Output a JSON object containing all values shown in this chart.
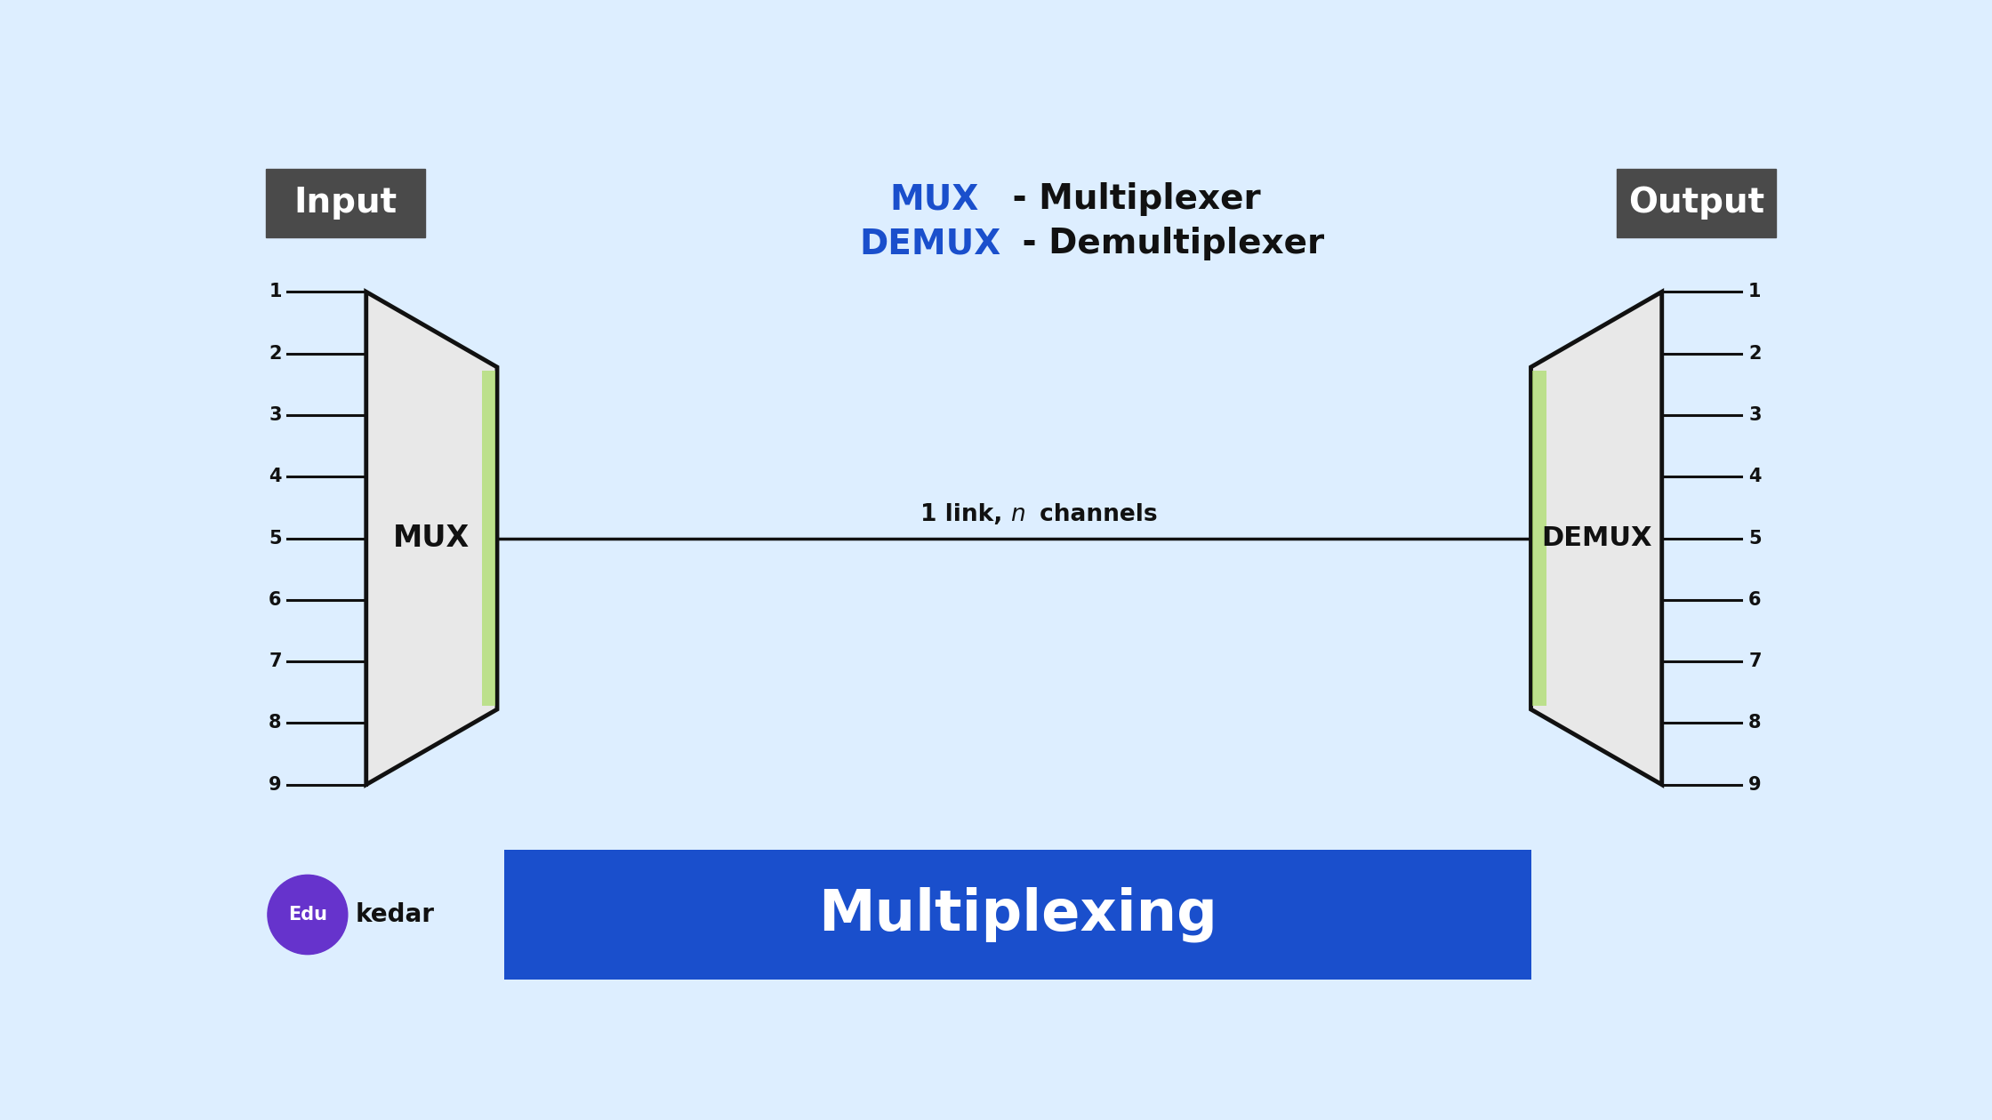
{
  "bg_color": "#ddeeff",
  "title_mux": "MUX",
  "title_mux_suffix": " - Multiplexer",
  "title_demux": "DEMUX",
  "title_demux_suffix": " - Demultiplexer",
  "input_label": "Input",
  "output_label": "Output",
  "mux_label": "MUX",
  "demux_label": "DEMUX",
  "link_label": "1 link, ",
  "link_label2": "n",
  "link_label3": " channels",
  "bottom_title": "Multiplexing",
  "bottom_bg": "#1a4fcc",
  "bottom_text_color": "#ffffff",
  "input_box_color": "#4a4a4a",
  "output_box_color": "#4a4a4a",
  "input_text_color": "#ffffff",
  "output_text_color": "#ffffff",
  "mux_face_color": "#e8e8e8",
  "mux_edge_color": "#111111",
  "num_channels": 9,
  "line_color": "#111111",
  "label_color": "#111111",
  "title_mux_color": "#1a4fcc",
  "title_demux_color": "#1a4fcc",
  "edu_circle_color": "#6633cc",
  "edu_text_color": "#ffffff",
  "kedar_text_color": "#111111",
  "green_strip_color": "#aade66"
}
